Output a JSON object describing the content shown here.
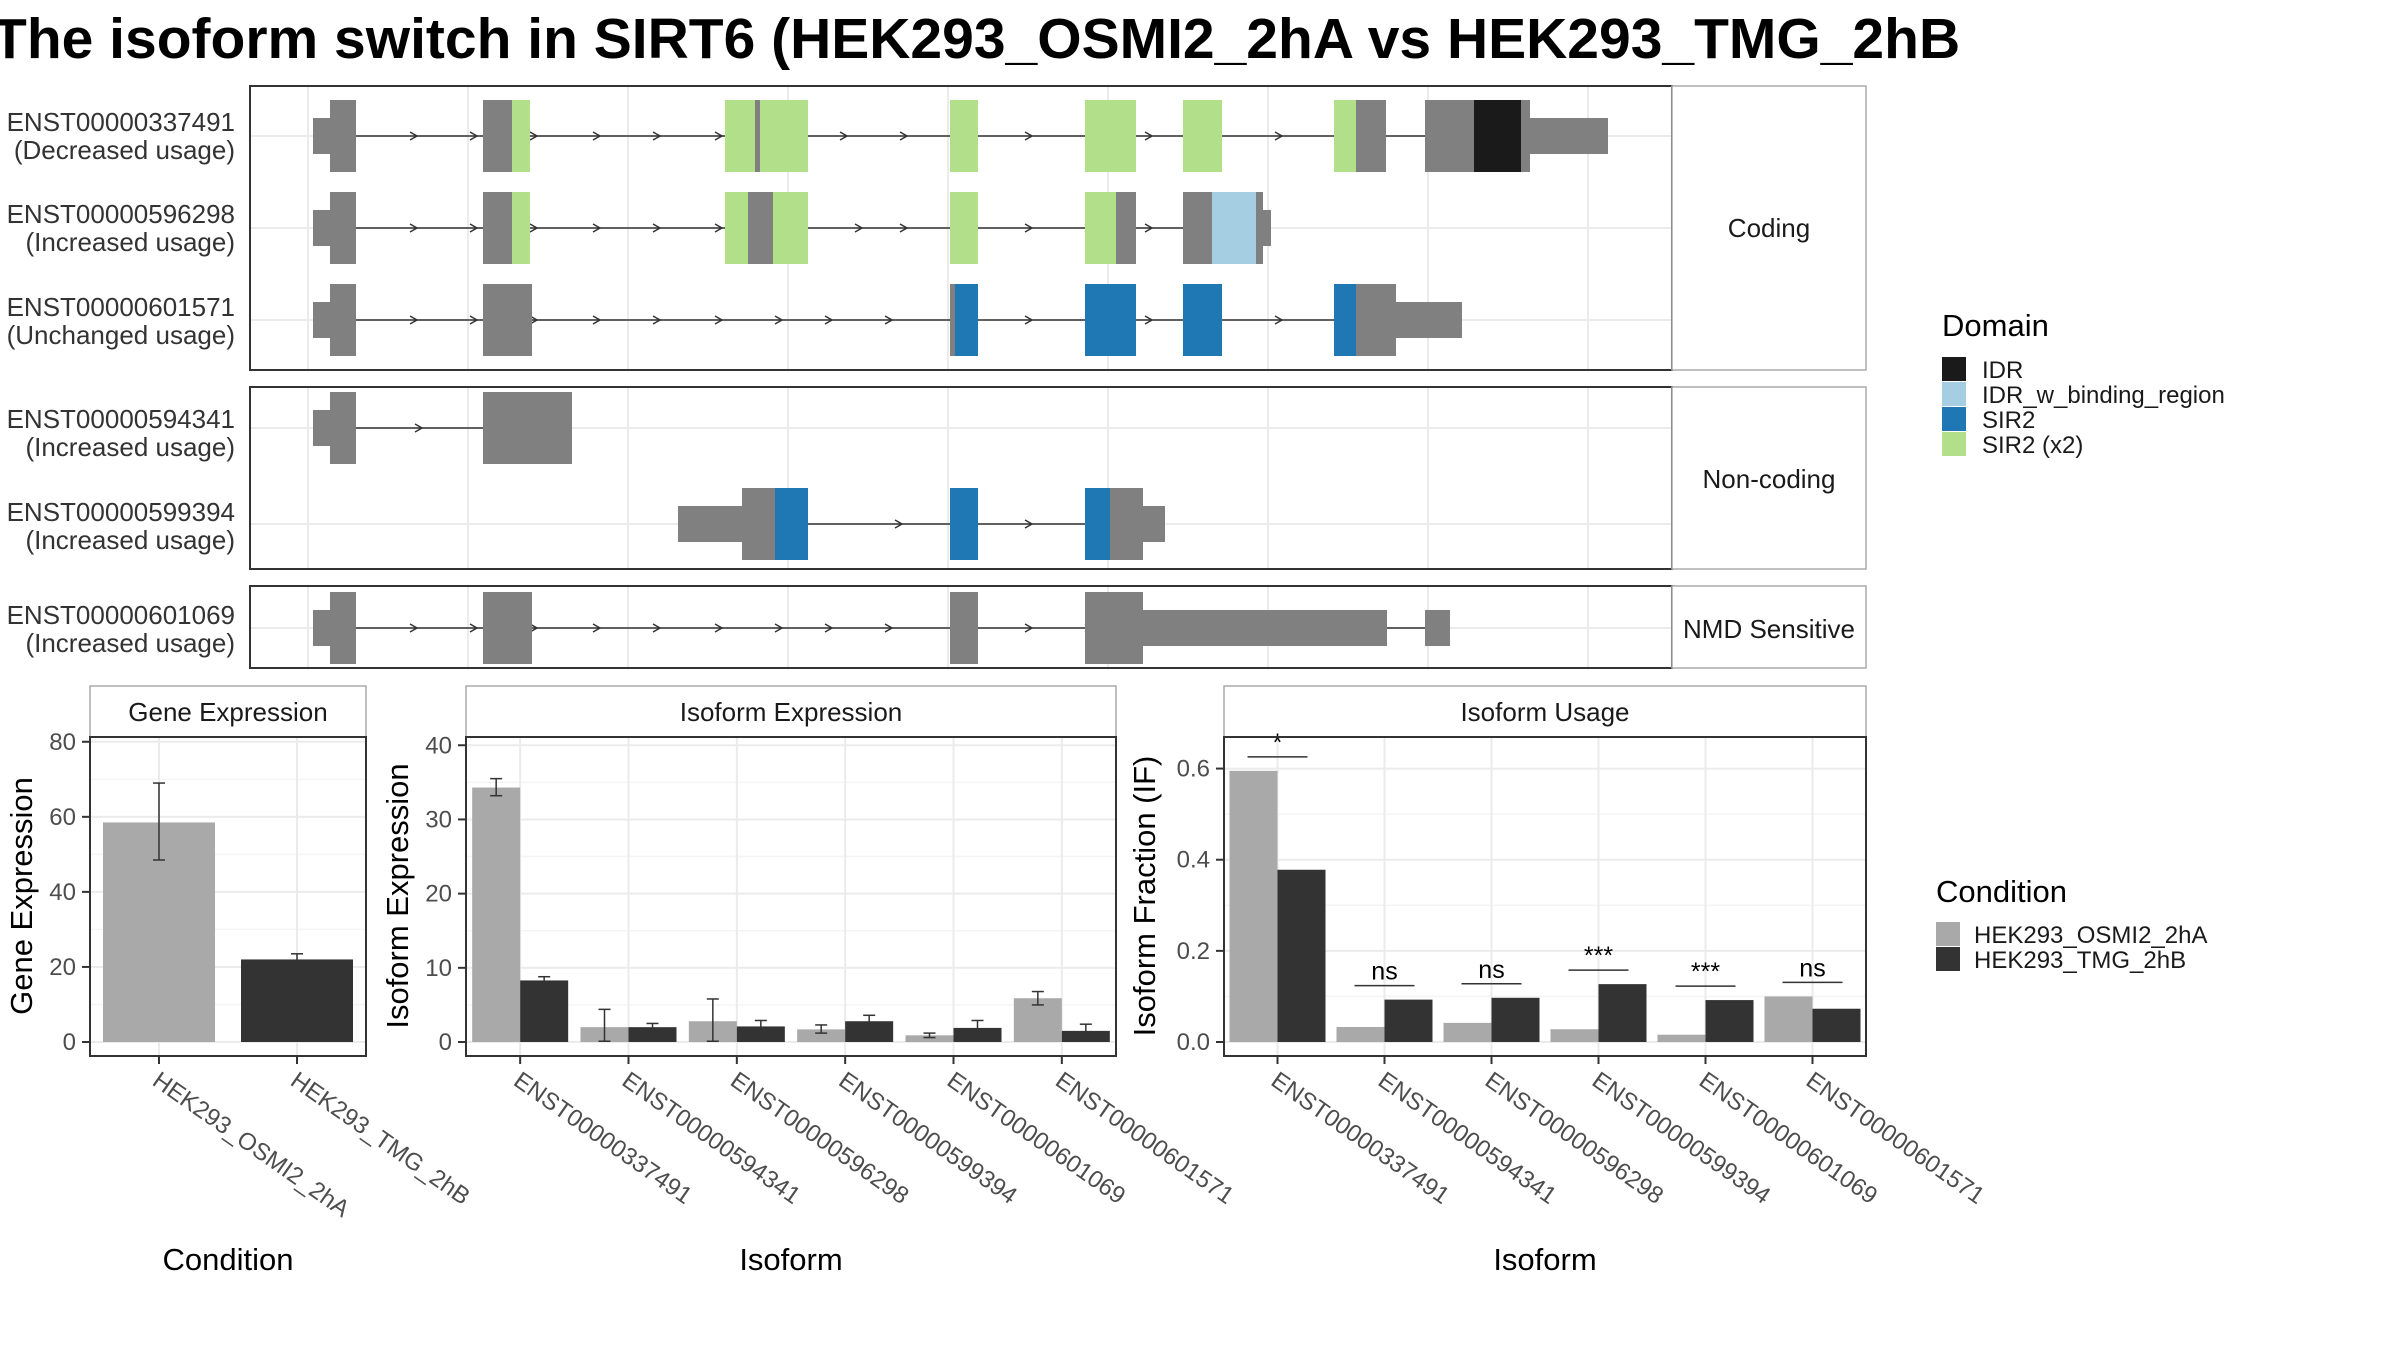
{
  "title": "The isoform switch in SIRT6 (HEK293_OSMI2_2hA vs HEK293_TMG_2hB",
  "colors": {
    "IDR": "#1a1a1a",
    "IDR_w_binding_region": "#a6cee3",
    "SIR2": "#1f78b4",
    "SIR2 (x2)": "#b2df8a",
    "noDomain": "#808080",
    "HEK293_OSMI2_2hA": "#a9a9a9",
    "HEK293_TMG_2hB": "#333333"
  },
  "structure_panel": {
    "groups": [
      {
        "label": "Coding",
        "transcripts": [
          {
            "id": "ENST00000337491",
            "status": "(Decreased usage)"
          },
          {
            "id": "ENST00000596298",
            "status": "(Increased usage)"
          },
          {
            "id": "ENST00000601571",
            "status": "(Unchanged usage)"
          }
        ]
      },
      {
        "label": "Non-coding",
        "transcripts": [
          {
            "id": "ENST00000594341",
            "status": "(Increased usage)"
          },
          {
            "id": "ENST00000599394",
            "status": "(Increased usage)"
          }
        ]
      },
      {
        "label": "NMD Sensitive",
        "transcripts": [
          {
            "id": "ENST00000601069",
            "status": "(Increased usage)"
          }
        ]
      }
    ]
  },
  "domain_legend": {
    "title": "Domain",
    "items": [
      "IDR",
      "IDR_w_binding_region",
      "SIR2",
      "SIR2 (x2)"
    ]
  },
  "condition_legend": {
    "title": "Condition",
    "items": [
      "HEK293_OSMI2_2hA",
      "HEK293_TMG_2hB"
    ]
  },
  "chart_data": [
    {
      "type": "bar",
      "title": "Gene Expression",
      "xlabel": "Condition",
      "ylabel": "Gene Expression",
      "categories": [
        "HEK293_OSMI2_2hA",
        "HEK293_TMG_2hB"
      ],
      "values": [
        58.5,
        22
      ],
      "errors": [
        [
          48.5,
          69
        ],
        [
          20.5,
          23.5
        ]
      ],
      "ylim": [
        0,
        85
      ],
      "yticks": [
        0,
        20,
        40,
        60,
        80
      ],
      "grid": true
    },
    {
      "type": "bar",
      "title": "Isoform Expression",
      "xlabel": "Isoform",
      "ylabel": "Isoform Expression",
      "categories": [
        "ENST00000337491",
        "ENST00000594341",
        "ENST00000596298",
        "ENST00000599394",
        "ENST00000601069",
        "ENST00000601571"
      ],
      "series": [
        {
          "name": "HEK293_OSMI2_2hA",
          "values": [
            34.3,
            2.0,
            2.8,
            1.7,
            0.9,
            5.9
          ],
          "errors": [
            [
              33.2,
              35.5
            ],
            [
              0.1,
              4.4
            ],
            [
              0.1,
              5.8
            ],
            [
              1.2,
              2.3
            ],
            [
              0.6,
              1.2
            ],
            [
              5.0,
              6.8
            ]
          ]
        },
        {
          "name": "HEK293_TMG_2hB",
          "values": [
            8.3,
            2.0,
            2.1,
            2.8,
            1.9,
            1.5
          ],
          "errors": [
            [
              7.9,
              8.8
            ],
            [
              1.5,
              2.5
            ],
            [
              1.3,
              2.9
            ],
            [
              2.0,
              3.6
            ],
            [
              0.9,
              2.9
            ],
            [
              0.8,
              2.4
            ]
          ]
        }
      ],
      "ylim": [
        0,
        43
      ],
      "yticks": [
        0,
        10,
        20,
        30,
        40
      ],
      "grid": true
    },
    {
      "type": "bar",
      "title": "Isoform Usage",
      "xlabel": "Isoform",
      "ylabel": "Isoform Fraction (IF)",
      "categories": [
        "ENST00000337491",
        "ENST00000594341",
        "ENST00000596298",
        "ENST00000599394",
        "ENST00000601069",
        "ENST00000601571"
      ],
      "series": [
        {
          "name": "HEK293_OSMI2_2hA",
          "values": [
            0.595,
            0.033,
            0.042,
            0.028,
            0.016,
            0.1
          ]
        },
        {
          "name": "HEK293_TMG_2hB",
          "values": [
            0.378,
            0.093,
            0.097,
            0.127,
            0.092,
            0.073
          ]
        }
      ],
      "significance": [
        "*",
        "ns",
        "ns",
        "***",
        "***",
        "ns"
      ],
      "ylim": [
        0,
        0.7
      ],
      "yticks": [
        "0.0",
        "0.2",
        "0.4",
        "0.6"
      ],
      "grid": true
    }
  ]
}
